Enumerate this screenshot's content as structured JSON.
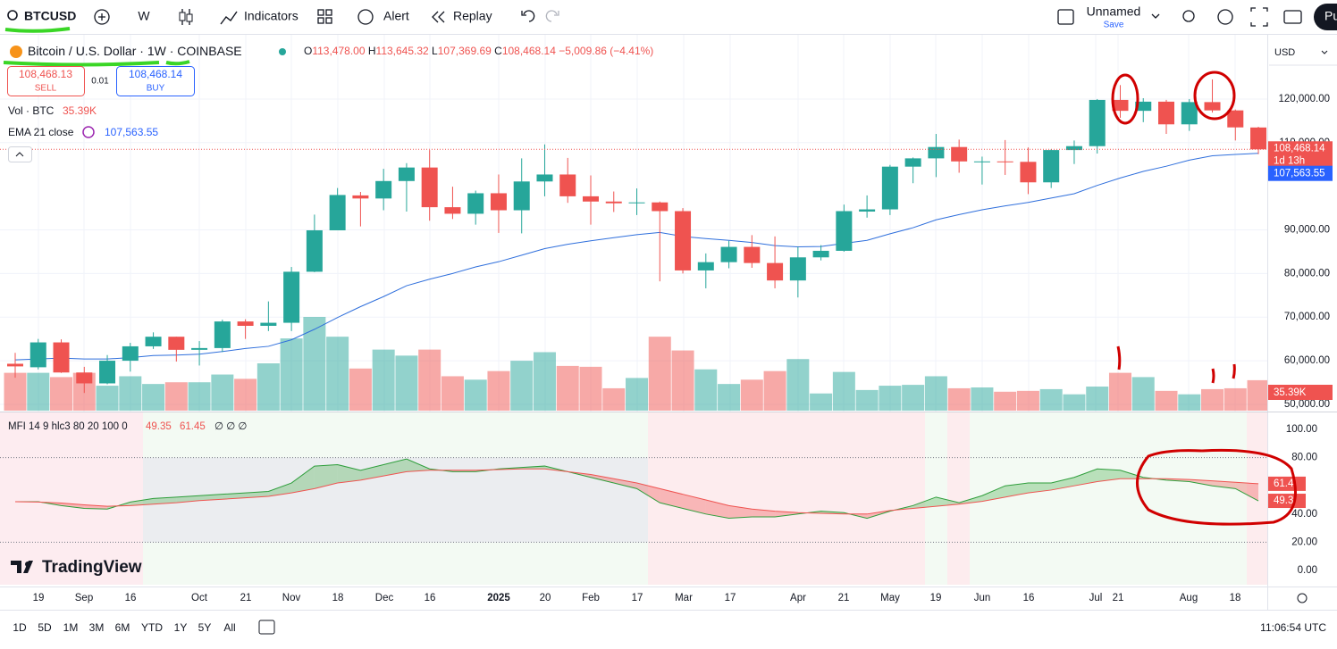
{
  "toolbar": {
    "symbol": "BTCUSD",
    "interval": "W",
    "indicators": "Indicators",
    "alert": "Alert",
    "replay": "Replay",
    "layout_name": "Unnamed",
    "save": "Save",
    "publish": "Pu"
  },
  "legend": {
    "title": "Bitcoin / U.S. Dollar",
    "interval": "1W",
    "exchange": "COINBASE",
    "ohlc": [
      {
        "label": "O",
        "value": "113,478.00"
      },
      {
        "label": "H",
        "value": "113,645.32"
      },
      {
        "label": "L",
        "value": "107,369.69"
      },
      {
        "label": "C",
        "value": "108,468.14"
      }
    ],
    "change": "−5,009.86 (−4.41%)",
    "sell_price": "108,468.13",
    "sell": "SELL",
    "spread": "0.01",
    "buy_price": "108,468.14",
    "buy": "BUY",
    "volume_label": "Vol · BTC",
    "volume_value": "35.39K",
    "ema_label": "EMA 21 close",
    "ema_value": "107,563.55",
    "mfi_label": "MFI 14 9 hlc3 80 20 100 0",
    "mfi_value": "49.35",
    "mfi_signal_value": "61.45",
    "mfi_empty": "∅ ∅ ∅"
  },
  "chart": {
    "type": "candlestick",
    "currency": "USD",
    "open": [
      59300,
      58500,
      64200,
      57300,
      54800,
      60000,
      63300,
      65500,
      62500,
      62900,
      69000,
      68000,
      68700,
      80400,
      89900,
      97900,
      97200,
      101200,
      104300,
      95200,
      93700,
      98400,
      94500,
      101100,
      102700,
      97700,
      96500,
      96100,
      96300,
      94300,
      80700,
      82600,
      86100,
      82400,
      78400,
      83700,
      85200,
      94200,
      94700,
      104500,
      106400,
      109000,
      105500,
      105700,
      105600,
      100900,
      108300,
      109200,
      119800,
      117300,
      119400,
      114200,
      119300,
      117400,
      113478
    ],
    "high": [
      61800,
      65000,
      64900,
      58600,
      61300,
      64100,
      66500,
      65500,
      64500,
      69400,
      69500,
      73600,
      81500,
      93500,
      99600,
      98700,
      104000,
      105300,
      108300,
      99900,
      99000,
      102700,
      106400,
      109600,
      106500,
      102500,
      98800,
      99500,
      96500,
      95000,
      84600,
      87500,
      88800,
      88500,
      86100,
      86500,
      95800,
      97900,
      104900,
      106600,
      112000,
      110700,
      106800,
      110600,
      108900,
      108500,
      110500,
      120000,
      123200,
      120200,
      119800,
      120000,
      124500,
      117600,
      113645.32
    ],
    "low": [
      56100,
      58000,
      57200,
      52600,
      54600,
      57500,
      62700,
      59800,
      58900,
      62000,
      65000,
      66800,
      66800,
      80300,
      89900,
      90800,
      94500,
      94200,
      92100,
      92500,
      91200,
      89300,
      89200,
      97700,
      96200,
      91200,
      94100,
      93400,
      78200,
      80000,
      76600,
      81200,
      81300,
      76600,
      74500,
      83000,
      85000,
      92800,
      93400,
      100700,
      102100,
      103100,
      100400,
      102600,
      98200,
      99600,
      105100,
      107500,
      115700,
      114700,
      112000,
      112700,
      116900,
      110500,
      107369.69
    ],
    "close": [
      58700,
      64200,
      57300,
      54800,
      60000,
      63300,
      65500,
      62500,
      62900,
      69000,
      68000,
      68700,
      80400,
      89900,
      98000,
      97200,
      101200,
      104300,
      95200,
      93700,
      98400,
      94500,
      101100,
      102700,
      97700,
      96500,
      96100,
      96300,
      94300,
      80700,
      82600,
      86100,
      82400,
      78400,
      83700,
      85200,
      94300,
      94700,
      104500,
      106400,
      109000,
      105700,
      105700,
      105600,
      100900,
      108300,
      109200,
      119800,
      117300,
      119400,
      114200,
      119300,
      117400,
      113500,
      108468.14
    ],
    "volume": [
      44000,
      44000,
      39000,
      44000,
      29000,
      40000,
      31000,
      33000,
      33000,
      42000,
      37000,
      55000,
      84000,
      109000,
      86000,
      49000,
      71000,
      64000,
      71000,
      40000,
      36000,
      46000,
      58000,
      68000,
      52000,
      51000,
      26000,
      38000,
      86000,
      70000,
      48000,
      31000,
      36000,
      46000,
      60000,
      20000,
      45000,
      24000,
      29000,
      30000,
      40000,
      26000,
      27000,
      22000,
      23000,
      25000,
      19000,
      28000,
      44000,
      39000,
      23000,
      19000,
      25000,
      26000,
      35390
    ],
    "ema": [
      60200,
      60400,
      60600,
      60400,
      60400,
      60700,
      61200,
      61300,
      61500,
      62100,
      62800,
      63300,
      64800,
      67200,
      69900,
      72400,
      74700,
      77200,
      78700,
      80000,
      81500,
      82700,
      84200,
      85700,
      86700,
      87500,
      88200,
      88900,
      89400,
      88500,
      88000,
      87600,
      87100,
      86400,
      86100,
      86200,
      86900,
      87600,
      89100,
      90500,
      92300,
      93500,
      94600,
      95500,
      96300,
      97300,
      98300,
      100200,
      101900,
      103400,
      104600,
      106000,
      107000,
      107300,
      107563.55
    ],
    "up_color": "#26a69a",
    "down_color": "#ef5350",
    "ema_color": "#2f6fdc",
    "ylim": [
      48550,
      133500
    ],
    "yticks": [
      {
        "value": 120000,
        "label": "120,000.00"
      },
      {
        "value": 110000,
        "label": "110,000.00"
      },
      {
        "value": 90000,
        "label": "90,000.00"
      },
      {
        "value": 80000,
        "label": "80,000.00"
      },
      {
        "value": 70000,
        "label": "70,000.00"
      },
      {
        "value": 60000,
        "label": "60,000.00"
      },
      {
        "value": 50000,
        "label": "50,000.00"
      }
    ],
    "last_price": {
      "value": 108468.14,
      "label": "108,468.14"
    },
    "countdown": "1d 13h",
    "ema_last": {
      "value": 107563.55,
      "label": "107,563.55"
    },
    "volume_last": {
      "value": 35390,
      "label": "35.39K"
    },
    "xticks": [
      "19",
      "Sep",
      "16",
      "Oct",
      "21",
      "Nov",
      "18",
      "Dec",
      "16",
      "2025",
      "20",
      "Feb",
      "17",
      "Mar",
      "17",
      "Apr",
      "21",
      "May",
      "19",
      "Jun",
      "16",
      "Jul",
      "21",
      "Aug",
      "18"
    ]
  },
  "mfi": {
    "type": "line",
    "mfi": [
      48.7,
      48.7,
      46,
      44,
      43.5,
      48.5,
      51,
      52,
      53,
      54,
      55,
      56,
      62,
      74,
      75,
      71,
      75,
      79,
      72,
      70,
      70,
      72,
      73,
      74,
      70,
      66,
      62,
      58,
      48,
      44,
      40,
      37,
      38,
      38,
      40,
      42,
      41,
      37,
      42,
      46,
      52,
      48,
      53,
      60,
      62,
      62,
      66,
      72,
      71,
      66,
      64,
      63,
      60,
      58,
      49.35
    ],
    "signal": [
      48.7,
      48.5,
      47.8,
      46.5,
      45.5,
      46,
      47,
      48,
      49.5,
      50.5,
      51.5,
      52.5,
      55,
      58,
      62,
      64,
      67,
      70,
      71,
      71,
      71,
      71.5,
      72,
      72,
      70,
      68,
      65,
      62,
      58,
      54,
      50,
      46,
      43.5,
      42,
      41,
      40.5,
      40,
      40,
      42.5,
      44,
      45.5,
      47,
      49,
      52,
      55,
      57,
      60,
      63,
      65,
      65,
      65,
      64.5,
      63.5,
      62.5,
      61.45
    ],
    "ylim": [
      -10.1,
      112
    ],
    "yticks": [
      {
        "value": 100,
        "label": "100.00"
      },
      {
        "value": 80,
        "label": "80.00"
      },
      {
        "value": 40,
        "label": "40.00"
      },
      {
        "value": 20,
        "label": "20.00"
      },
      {
        "value": 0,
        "label": "0.00"
      }
    ],
    "bands": [
      80,
      20
    ],
    "signal_last": {
      "value": 61.45,
      "label": "61.4"
    },
    "mfi_last": {
      "value": 49.35,
      "label": "49.3"
    }
  },
  "brand": "TradingView",
  "ranges": [
    "1D",
    "5D",
    "1M",
    "3M",
    "6M",
    "YTD",
    "1Y",
    "5Y",
    "All"
  ],
  "clock": "11:06:54 UTC"
}
